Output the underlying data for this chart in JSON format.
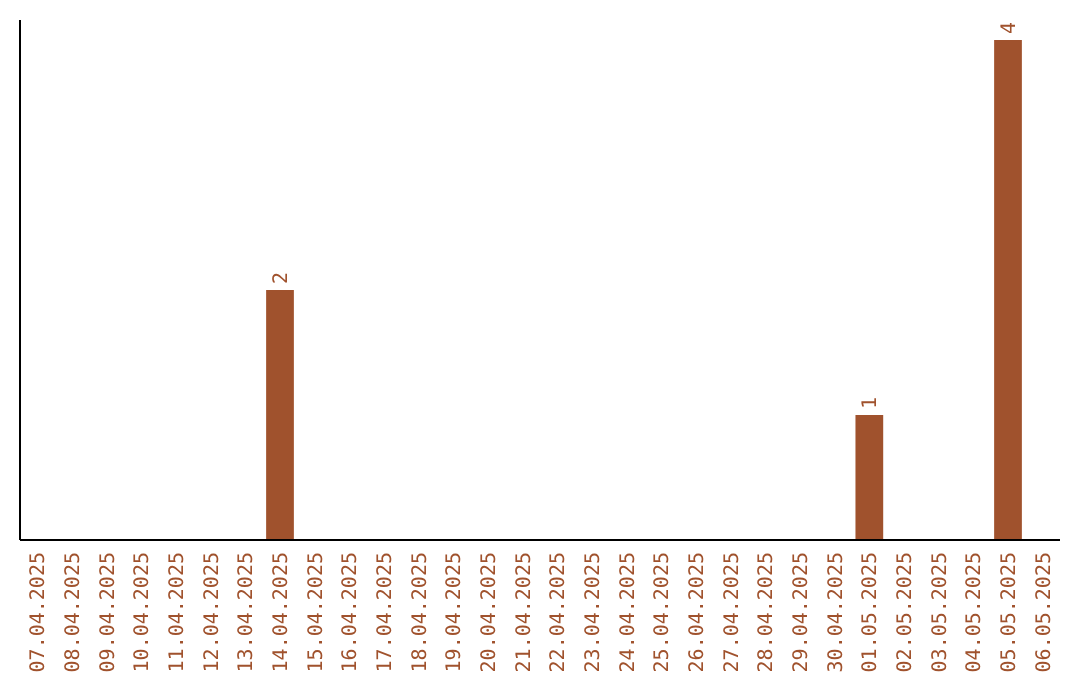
{
  "chart_data": {
    "type": "bar",
    "categories": [
      "07.04.2025",
      "08.04.2025",
      "09.04.2025",
      "10.04.2025",
      "11.04.2025",
      "12.04.2025",
      "13.04.2025",
      "14.04.2025",
      "15.04.2025",
      "16.04.2025",
      "17.04.2025",
      "18.04.2025",
      "19.04.2025",
      "20.04.2025",
      "21.04.2025",
      "22.04.2025",
      "23.04.2025",
      "24.04.2025",
      "25.04.2025",
      "26.04.2025",
      "27.04.2025",
      "28.04.2025",
      "29.04.2025",
      "30.04.2025",
      "01.05.2025",
      "02.05.2025",
      "03.05.2025",
      "04.05.2025",
      "05.05.2025",
      "06.05.2025"
    ],
    "values": [
      null,
      null,
      null,
      null,
      null,
      null,
      null,
      2,
      null,
      null,
      null,
      null,
      null,
      null,
      null,
      null,
      null,
      null,
      null,
      null,
      null,
      null,
      null,
      null,
      1,
      null,
      null,
      null,
      4,
      null
    ],
    "color": "#a0522d",
    "data_labels": true
  }
}
